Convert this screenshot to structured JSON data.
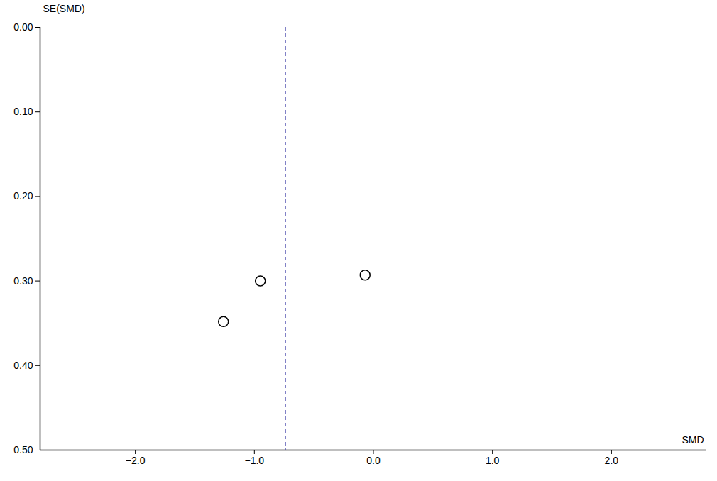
{
  "chart_data": {
    "type": "scatter",
    "x_label": "SMD",
    "y_label": "SE(SMD)",
    "x": [
      -1.26,
      -0.95,
      -0.07
    ],
    "values": [
      0.348,
      0.3,
      0.293
    ],
    "color": "#000000",
    "marker": "open_circle",
    "vline": -0.74,
    "vline_color": "#4444aa",
    "line_style": "dashed",
    "xlim": [
      -2.8,
      2.8
    ],
    "xticks": [
      -2,
      -1,
      0,
      1,
      2
    ],
    "ylim": [
      0,
      0.5
    ],
    "yticks": [
      0,
      0.1,
      0.2,
      0.3,
      0.4,
      0.5
    ],
    "grid": false
  }
}
